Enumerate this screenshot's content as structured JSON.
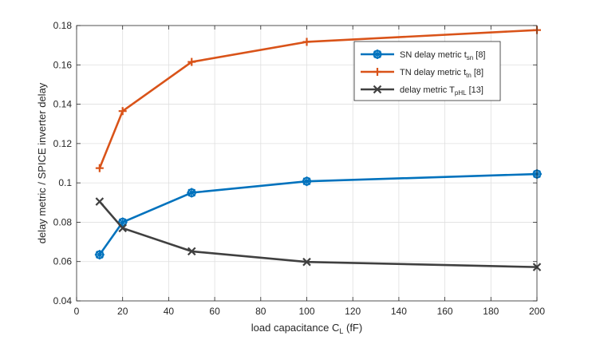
{
  "chart_data": {
    "type": "line",
    "title": "",
    "xlabel": "load capacitance C",
    "xlabel_sub": "L",
    "xlabel_unit": " (fF)",
    "ylabel": "delay metric / SPICE inverter delay",
    "xlim": [
      0,
      200
    ],
    "ylim": [
      0.04,
      0.18
    ],
    "xticks": [
      0,
      20,
      40,
      60,
      80,
      100,
      120,
      140,
      160,
      180,
      200
    ],
    "yticks": [
      0.04,
      0.06,
      0.08,
      0.1,
      0.12,
      0.14,
      0.16,
      0.18
    ],
    "xtick_labels": [
      "0",
      "20",
      "40",
      "60",
      "80",
      "100",
      "120",
      "140",
      "160",
      "180",
      "200"
    ],
    "ytick_labels": [
      "0.04",
      "0.06",
      "0.08",
      "0.1",
      "0.12",
      "0.14",
      "0.16",
      "0.18"
    ],
    "grid": true,
    "legend_position": "top-right",
    "x": [
      10,
      20,
      50,
      100,
      200
    ],
    "series": [
      {
        "name": "SN delay metric t",
        "name_sub": "sn",
        "name_suffix": " [8]",
        "color": "#0072BD",
        "marker": "circle-star",
        "values": [
          0.0635,
          0.08,
          0.095,
          0.1008,
          0.1045
        ]
      },
      {
        "name": "TN delay metric t",
        "name_sub": "tn",
        "name_suffix": " [8]",
        "color": "#D95319",
        "marker": "plus",
        "values": [
          0.1075,
          0.1365,
          0.1615,
          0.1717,
          0.1777
        ]
      },
      {
        "name": "delay metric T",
        "name_sub": "pHL",
        "name_suffix": " [13]",
        "color": "#404040",
        "marker": "x",
        "values": [
          0.0905,
          0.077,
          0.0652,
          0.0598,
          0.0572
        ]
      }
    ]
  }
}
